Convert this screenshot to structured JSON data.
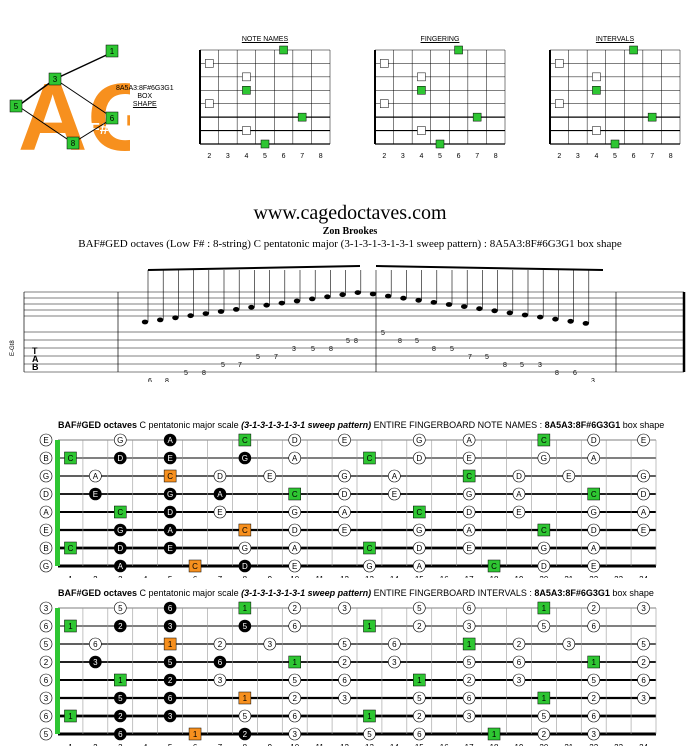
{
  "logo": {
    "letters": "AG",
    "sharp": "F#",
    "markers": [
      "1",
      "3",
      "5",
      "6",
      "8"
    ],
    "shape_code": "8A5A3:8F#6G3G1",
    "shape_word1": "BOX",
    "shape_word2": "SHAPE"
  },
  "mini_diagrams": [
    {
      "title": "NOTE NAMES",
      "frets": [
        "2",
        "3",
        "4",
        "5",
        "6",
        "7",
        "8"
      ]
    },
    {
      "title": "FINGERING",
      "frets": [
        "2",
        "3",
        "4",
        "5",
        "6",
        "7",
        "8"
      ]
    },
    {
      "title": "INTERVALS",
      "frets": [
        "2",
        "3",
        "4",
        "5",
        "6",
        "7",
        "8"
      ]
    }
  ],
  "site": "www.cagedoctaves.com",
  "author": "Zon Brookes",
  "subtitle": "BAF#GED octaves (Low F# : 8-string) C pentatonic major (3-1-3-1-3-1-3-1 sweep pattern) : 8A5A3:8F#6G3G1 box shape",
  "staff": {
    "tuning_label": "E-Gt8",
    "tab_letters": [
      "T",
      "A",
      "B"
    ],
    "tab_up": [
      {
        "s": 6,
        "f": "6"
      },
      {
        "s": 6,
        "f": "8"
      },
      {
        "s": 5,
        "f": "5"
      },
      {
        "s": 5,
        "f": "8"
      },
      {
        "s": 4,
        "f": "5"
      },
      {
        "s": 4,
        "f": "7"
      },
      {
        "s": 3,
        "f": "5"
      },
      {
        "s": 3,
        "f": "7"
      },
      {
        "s": 2,
        "f": "3"
      },
      {
        "s": 2,
        "f": "5"
      },
      {
        "s": 2,
        "f": "8"
      },
      {
        "s": 1,
        "f": "5"
      },
      {
        "s": 1,
        "f": "8"
      }
    ],
    "tab_down": [
      {
        "s": 0,
        "f": "5"
      },
      {
        "s": 1,
        "f": "8"
      },
      {
        "s": 1,
        "f": "5"
      },
      {
        "s": 2,
        "f": "8"
      },
      {
        "s": 2,
        "f": "5"
      },
      {
        "s": 3,
        "f": "7"
      },
      {
        "s": 3,
        "f": "5"
      },
      {
        "s": 4,
        "f": "8"
      },
      {
        "s": 4,
        "f": "5"
      },
      {
        "s": 4,
        "f": "3"
      },
      {
        "s": 5,
        "f": "8"
      },
      {
        "s": 5,
        "f": "6"
      },
      {
        "s": 6,
        "f": "3"
      }
    ]
  },
  "fretboards": [
    {
      "title_bold": "BAF#GED octaves",
      "title_rest": " C pentatonic major scale ",
      "title_pattern": "(3-1-3-1-3-1-3-1 sweep pattern)",
      "title_tail": " ENTIRE FINGERBOARD NOTE NAMES : ",
      "title_code": "8A5A3:8F#6G3G1",
      "title_end": " box shape",
      "open": [
        "E",
        "B",
        "G",
        "D",
        "A",
        "E",
        "B",
        "G"
      ],
      "frets": [
        "1",
        "2",
        "3",
        "4",
        "5",
        "6",
        "7",
        "8",
        "9",
        "10",
        "11",
        "12",
        "13",
        "14",
        "15",
        "16",
        "17",
        "18",
        "19",
        "20",
        "21",
        "22",
        "23",
        "24"
      ],
      "kind": "notes"
    },
    {
      "title_bold": "BAF#GED octaves",
      "title_rest": " C pentatonic major scale ",
      "title_pattern": "(3-1-3-1-3-1-3-1 sweep pattern)",
      "title_tail": " ENTIRE FINGERBOARD INTERVALS : ",
      "title_code": "8A5A3:8F#6G3G1",
      "title_end": " box shape",
      "open": [
        "3",
        "6",
        "5",
        "2",
        "6",
        "3",
        "6",
        "5"
      ],
      "frets": [
        "1",
        "2",
        "3",
        "4",
        "5",
        "6",
        "7",
        "8",
        "9",
        "10",
        "11",
        "12",
        "13",
        "14",
        "15",
        "16",
        "17",
        "18",
        "19",
        "20",
        "21",
        "22",
        "23",
        "24"
      ],
      "kind": "intervals"
    }
  ],
  "colors": {
    "orange": "#f7901e",
    "green": "#2ec632",
    "black": "#000000"
  }
}
